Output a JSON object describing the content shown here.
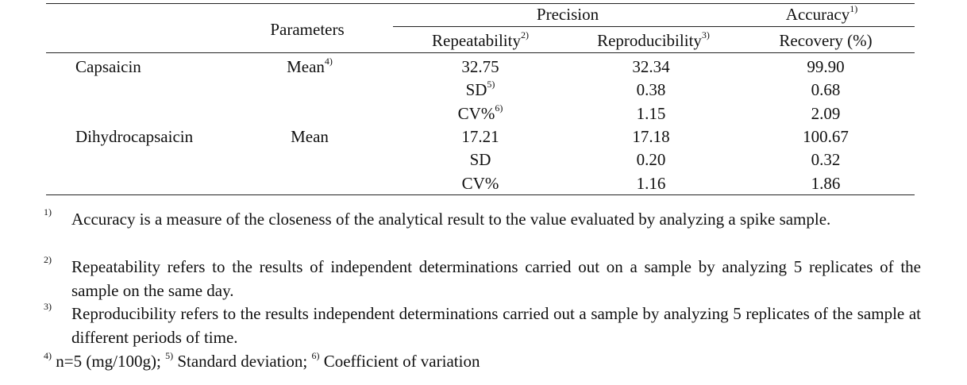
{
  "table": {
    "header": {
      "parameters": "Parameters",
      "precision": "Precision",
      "accuracy": {
        "text": "Accuracy",
        "sup": "1)"
      },
      "repeatability": {
        "text": "Repeatability",
        "sup": "2)"
      },
      "reproducibility": {
        "text": "Reproducibility",
        "sup": "3)"
      },
      "recovery": "Recovery (%)"
    },
    "rows": [
      {
        "compound": "Capsaicin",
        "parameter": {
          "text": "Mean",
          "sup": "4)"
        },
        "repeatability": "32.75",
        "reproducibility": "32.34",
        "recovery": "99.90"
      },
      {
        "repeatability": {
          "text": "SD",
          "sup": "5)"
        },
        "reproducibility": "0.38",
        "recovery": "0.68"
      },
      {
        "repeatability": {
          "text": "CV%",
          "sup": "6)"
        },
        "reproducibility": "1.15",
        "recovery": "2.09"
      },
      {
        "compound": "Dihydrocapsaicin",
        "parameter": "Mean",
        "repeatability": "17.21",
        "reproducibility": "17.18",
        "recovery": "100.67"
      },
      {
        "repeatability": "SD",
        "reproducibility": "0.20",
        "recovery": "0.32"
      },
      {
        "repeatability": "CV%",
        "reproducibility": "1.16",
        "recovery": "1.86"
      }
    ]
  },
  "footnotes": [
    {
      "mark": "1)",
      "text": "Accuracy is a measure of the closeness of the analytical result to the value evaluated by analyzing a spike sample."
    },
    {
      "mark": "2)",
      "text": "Repeatability refers to the results of independent determinations carried out on a sample by analyzing 5 replicates of the sample on the same day."
    },
    {
      "mark": "3)",
      "text": "Reproducibility refers to the results independent determinations carried out a sample by analyzing 5 replicates of the sample at different periods of time."
    },
    {
      "mark": "4)",
      "text": "n=5 (mg/100g);"
    },
    {
      "mark": "5)",
      "text": "Standard deviation;"
    },
    {
      "mark": "6)",
      "text": "Coefficient of variation"
    }
  ]
}
